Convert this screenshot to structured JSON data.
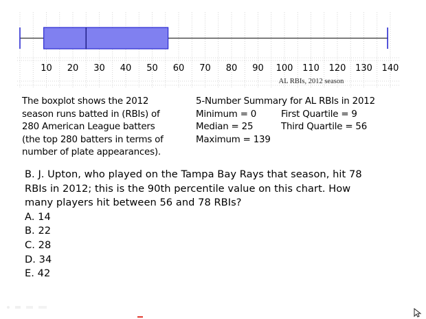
{
  "chart_data": {
    "type": "boxplot",
    "xlabel": "AL RBIs, 2012 season",
    "xlim": [
      0,
      140
    ],
    "ticks": [
      10,
      20,
      30,
      40,
      50,
      60,
      70,
      80,
      90,
      100,
      110,
      120,
      130,
      140
    ],
    "box": {
      "min": 0,
      "q1": 9,
      "median": 25,
      "q3": 56,
      "max": 139
    },
    "box_color": "#8080f0",
    "box_edge_color": "#2a2ad0",
    "grid": "dotted"
  },
  "description": {
    "lines": [
      "The boxplot shows the 2012",
      "season runs batted in (RBIs) of",
      "280 American League batters",
      "(the top 280 batters in terms of",
      "number of plate appearances)."
    ]
  },
  "summary": {
    "title": "5-Number Summary for AL RBIs in 2012",
    "minimum": "Minimum = 0",
    "first_quartile": "First Quartile = 9",
    "median": "Median = 25",
    "third_quartile": "Third Quartile = 56",
    "maximum": "Maximum = 139"
  },
  "question": {
    "lines": [
      "B. J. Upton, who played on the Tampa Bay Rays that season, hit 78",
      "RBIs in 2012; this is the 90th percentile value on this chart.  How",
      "many players hit between 56 and 78 RBIs?"
    ],
    "options": [
      "A. 14",
      "B. 22",
      "C. 28",
      "D. 34",
      "E. 42"
    ]
  }
}
